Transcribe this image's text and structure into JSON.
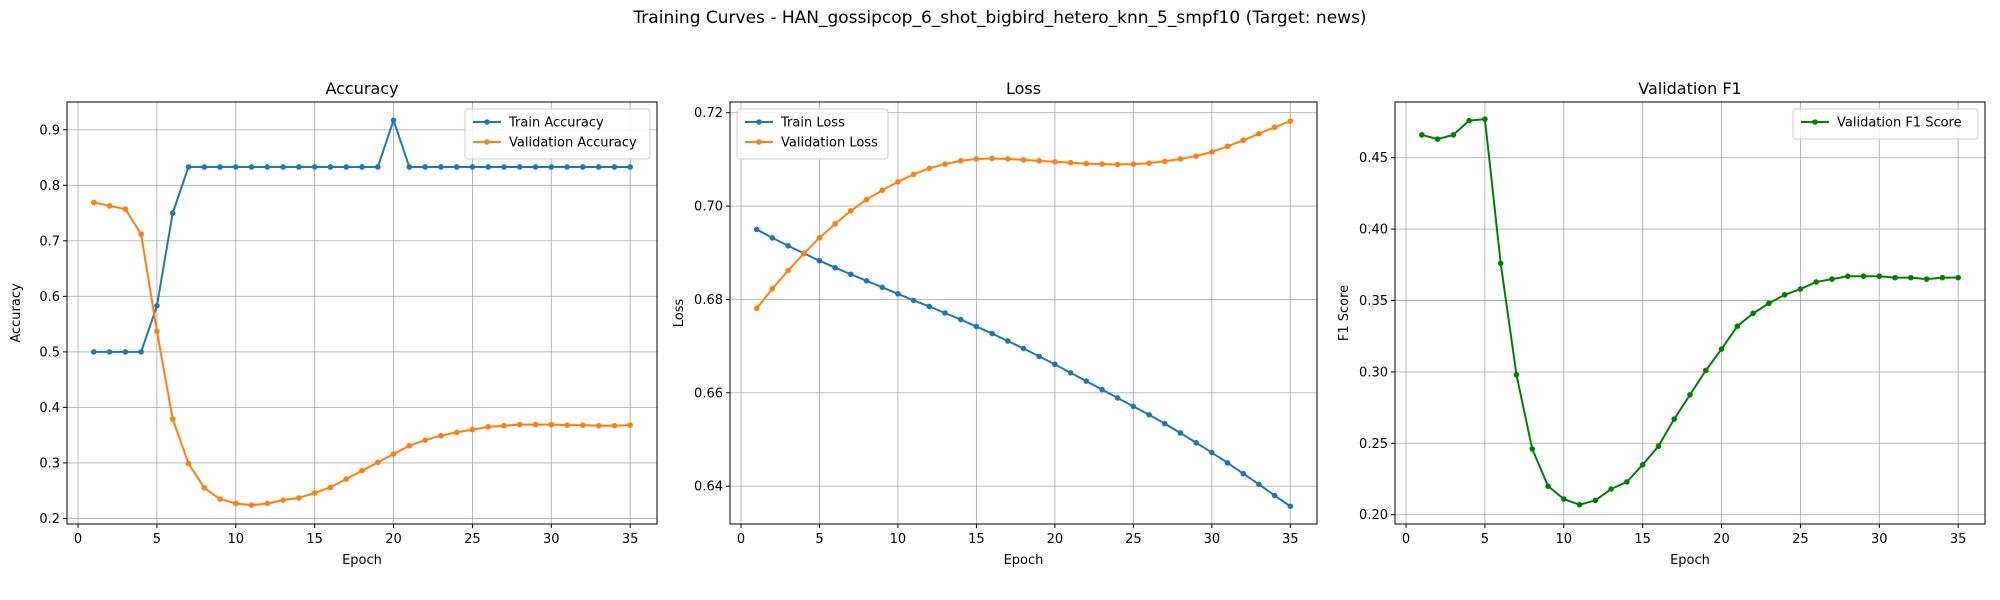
{
  "figure": {
    "title": "Training Curves - HAN_gossipcop_6_shot_bigbird_hetero_knn_5_smpf10 (Target: news)"
  },
  "colors": {
    "blue": "#1f77b4",
    "orange": "#ff7f0e",
    "green": "#008000",
    "grid": "#b0b0b0"
  },
  "chart_data": [
    {
      "type": "line",
      "title": "Accuracy",
      "xlabel": "Epoch",
      "ylabel": "Accuracy",
      "xlim": [
        -0.7,
        36.7
      ],
      "ylim": [
        0.19,
        0.95
      ],
      "xticks": [
        0,
        5,
        10,
        15,
        20,
        25,
        30,
        35
      ],
      "yticks": [
        0.2,
        0.3,
        0.4,
        0.5,
        0.6,
        0.7,
        0.8,
        0.9
      ],
      "ytick_format": 1,
      "grid": true,
      "legend": "top-right",
      "x": [
        1,
        2,
        3,
        4,
        5,
        6,
        7,
        8,
        9,
        10,
        11,
        12,
        13,
        14,
        15,
        16,
        17,
        18,
        19,
        20,
        21,
        22,
        23,
        24,
        25,
        26,
        27,
        28,
        29,
        30,
        31,
        32,
        33,
        34,
        35
      ],
      "series": [
        {
          "name": "Train Accuracy",
          "color": "#1f77b4",
          "values": [
            0.5,
            0.5,
            0.5,
            0.5,
            0.583,
            0.75,
            0.833,
            0.833,
            0.833,
            0.833,
            0.833,
            0.833,
            0.833,
            0.833,
            0.833,
            0.833,
            0.833,
            0.833,
            0.833,
            0.917,
            0.833,
            0.833,
            0.833,
            0.833,
            0.833,
            0.833,
            0.833,
            0.833,
            0.833,
            0.833,
            0.833,
            0.833,
            0.833,
            0.833,
            0.833
          ]
        },
        {
          "name": "Validation Accuracy",
          "color": "#ff7f0e",
          "values": [
            0.769,
            0.763,
            0.757,
            0.712,
            0.537,
            0.379,
            0.299,
            0.255,
            0.235,
            0.227,
            0.224,
            0.227,
            0.233,
            0.237,
            0.246,
            0.256,
            0.271,
            0.286,
            0.301,
            0.316,
            0.331,
            0.341,
            0.349,
            0.355,
            0.36,
            0.365,
            0.367,
            0.369,
            0.369,
            0.369,
            0.368,
            0.368,
            0.367,
            0.367,
            0.368
          ]
        }
      ]
    },
    {
      "type": "line",
      "title": "Loss",
      "xlabel": "Epoch",
      "ylabel": "Loss",
      "xlim": [
        -0.7,
        36.7
      ],
      "ylim": [
        0.6319,
        0.7223
      ],
      "xticks": [
        0,
        5,
        10,
        15,
        20,
        25,
        30,
        35
      ],
      "yticks": [
        0.64,
        0.66,
        0.68,
        0.7,
        0.72
      ],
      "ytick_format": 2,
      "grid": true,
      "legend": "top-left",
      "x": [
        1,
        2,
        3,
        4,
        5,
        6,
        7,
        8,
        9,
        10,
        11,
        12,
        13,
        14,
        15,
        16,
        17,
        18,
        19,
        20,
        21,
        22,
        23,
        24,
        25,
        26,
        27,
        28,
        29,
        30,
        31,
        32,
        33,
        34,
        35
      ],
      "series": [
        {
          "name": "Train Loss",
          "color": "#1f77b4",
          "values": [
            0.695,
            0.6932,
            0.6915,
            0.6899,
            0.6883,
            0.6868,
            0.6854,
            0.684,
            0.6826,
            0.6812,
            0.6798,
            0.6785,
            0.6771,
            0.6757,
            0.6742,
            0.6727,
            0.6711,
            0.6695,
            0.6678,
            0.6661,
            0.6643,
            0.6625,
            0.6607,
            0.6589,
            0.6571,
            0.6553,
            0.6534,
            0.6514,
            0.6493,
            0.6472,
            0.645,
            0.6427,
            0.6404,
            0.638,
            0.6357
          ]
        },
        {
          "name": "Validation Loss",
          "color": "#ff7f0e",
          "values": [
            0.6781,
            0.6823,
            0.6862,
            0.6898,
            0.6932,
            0.6962,
            0.699,
            0.7014,
            0.7034,
            0.7052,
            0.7068,
            0.7081,
            0.709,
            0.7097,
            0.7101,
            0.7102,
            0.7101,
            0.7099,
            0.7097,
            0.7095,
            0.7093,
            0.7091,
            0.709,
            0.7089,
            0.709,
            0.7092,
            0.7096,
            0.7101,
            0.7107,
            0.7116,
            0.7128,
            0.7141,
            0.7155,
            0.7169,
            0.7182
          ]
        }
      ]
    },
    {
      "type": "line",
      "title": "Validation F1",
      "xlabel": "Epoch",
      "ylabel": "F1 Score",
      "xlim": [
        -0.7,
        36.7
      ],
      "ylim": [
        0.1935,
        0.489
      ],
      "xticks": [
        0,
        5,
        10,
        15,
        20,
        25,
        30,
        35
      ],
      "yticks": [
        0.2,
        0.25,
        0.3,
        0.35,
        0.4,
        0.45
      ],
      "ytick_format": 2,
      "grid": true,
      "legend": "top-right",
      "x": [
        1,
        2,
        3,
        4,
        5,
        6,
        7,
        8,
        9,
        10,
        11,
        12,
        13,
        14,
        15,
        16,
        17,
        18,
        19,
        20,
        21,
        22,
        23,
        24,
        25,
        26,
        27,
        28,
        29,
        30,
        31,
        32,
        33,
        34,
        35
      ],
      "series": [
        {
          "name": "Validation F1 Score",
          "color": "#008000",
          "values": [
            0.466,
            0.463,
            0.466,
            0.476,
            0.477,
            0.376,
            0.298,
            0.246,
            0.22,
            0.211,
            0.207,
            0.21,
            0.218,
            0.223,
            0.235,
            0.248,
            0.267,
            0.284,
            0.301,
            0.316,
            0.332,
            0.341,
            0.348,
            0.354,
            0.358,
            0.363,
            0.365,
            0.367,
            0.367,
            0.367,
            0.366,
            0.366,
            0.365,
            0.366,
            0.366
          ]
        }
      ]
    }
  ]
}
